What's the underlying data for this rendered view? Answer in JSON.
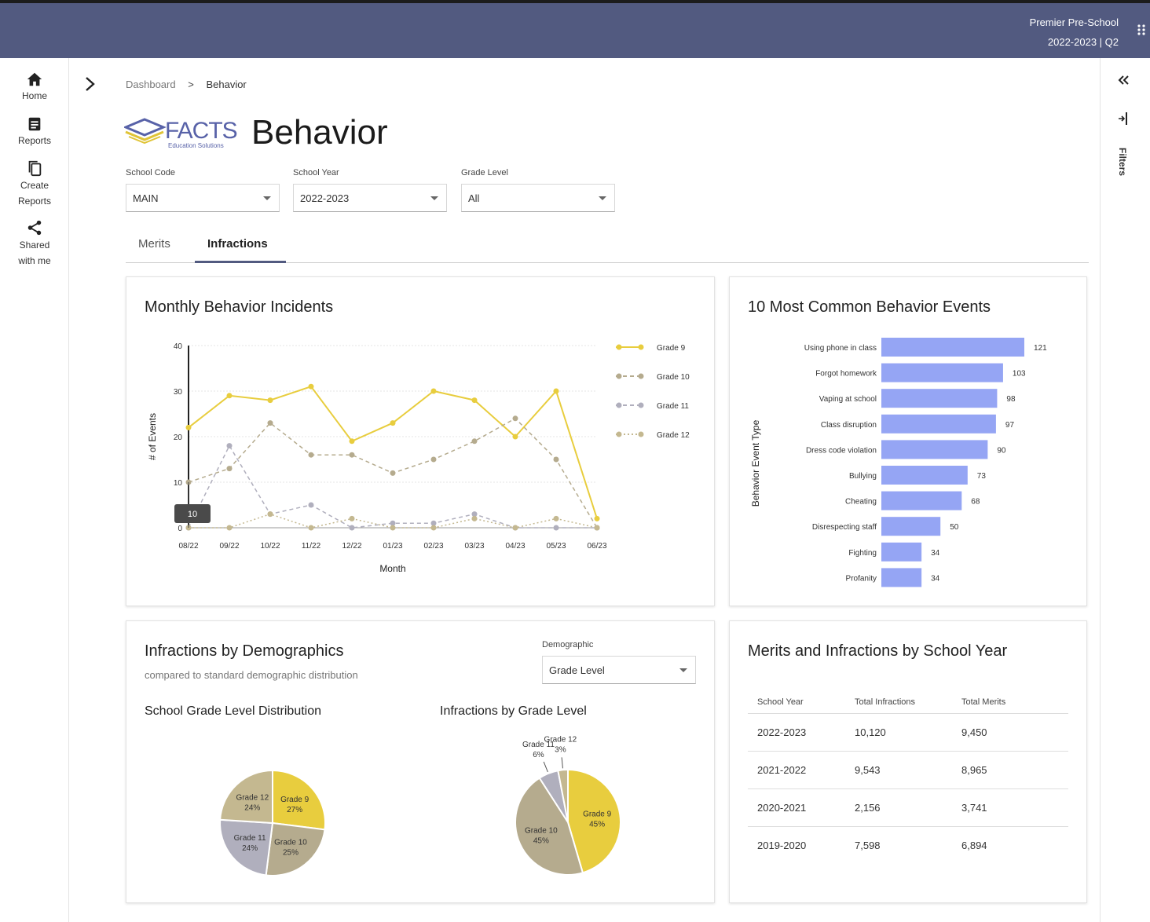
{
  "header": {
    "org_name": "Premier Pre-School",
    "term": "2022-2023 | Q2"
  },
  "nav": [
    {
      "icon": "home-icon",
      "label": "Home"
    },
    {
      "icon": "reports-icon",
      "label": "Reports"
    },
    {
      "icon": "copy-icon",
      "label": "Create Reports"
    },
    {
      "icon": "share-icon",
      "label": "Shared with me"
    }
  ],
  "right_rail": {
    "filters_label": "Filters"
  },
  "breadcrumb": {
    "parent": "Dashboard",
    "separator": ">",
    "current": "Behavior"
  },
  "logo": {
    "text": "FACTS",
    "tagline": "Education Solutions"
  },
  "page_title": "Behavior",
  "filters": {
    "school_code": {
      "label": "School Code",
      "value": "MAIN"
    },
    "school_year": {
      "label": "School Year",
      "value": "2022-2023"
    },
    "grade_level": {
      "label": "Grade Level",
      "value": "All"
    }
  },
  "tabs": [
    {
      "label": "Merits"
    },
    {
      "label": "Infractions"
    }
  ],
  "monthly": {
    "title": "Monthly Behavior Incidents"
  },
  "events": {
    "title": "10 Most Common Behavior Events"
  },
  "demographics": {
    "title": "Infractions by Demographics",
    "subtitle": "compared to standard demographic distribution",
    "select_label": "Demographic",
    "select_value": "Grade Level",
    "dist_title": "School Grade Level Distribution",
    "infr_title": "Infractions by Grade Level"
  },
  "merits_infractions": {
    "title": "Merits and Infractions by School Year",
    "headers": [
      "School Year",
      "Total Infractions",
      "Total Merits"
    ],
    "rows": [
      [
        "2022-2023",
        "10,120",
        "9,450"
      ],
      [
        "2021-2022",
        "9,543",
        "8,965"
      ],
      [
        "2020-2021",
        "2,156",
        "3,741"
      ],
      [
        "2019-2020",
        "7,598",
        "6,894"
      ]
    ]
  },
  "colors": {
    "header": "#525a80",
    "grade9": "#e8cd3e",
    "grade10": "#b5ab8e",
    "grade11": "#b0afbd",
    "grade12": "#c4b890",
    "bar": "#95a5f4"
  },
  "chart_data": [
    {
      "type": "line",
      "title": "Monthly Behavior Incidents",
      "xlabel": "Month",
      "ylabel": "# of Events",
      "x": [
        "08/22",
        "09/22",
        "10/22",
        "11/22",
        "12/22",
        "01/23",
        "02/23",
        "03/23",
        "04/23",
        "05/23",
        "06/23"
      ],
      "ylim": [
        0,
        40
      ],
      "yticks": [
        0,
        10,
        20,
        30,
        40
      ],
      "grid": true,
      "legend": "right",
      "series": [
        {
          "name": "Grade 9",
          "values": [
            22,
            29,
            28,
            31,
            19,
            23,
            30,
            28,
            20,
            30,
            2
          ]
        },
        {
          "name": "Grade 10",
          "values": [
            10,
            13,
            23,
            16,
            16,
            12,
            15,
            19,
            24,
            15,
            0
          ]
        },
        {
          "name": "Grade 11",
          "values": [
            0,
            18,
            3,
            5,
            0,
            1,
            1,
            3,
            0,
            0,
            0
          ]
        },
        {
          "name": "Grade 12",
          "values": [
            0,
            0,
            3,
            0,
            2,
            0,
            0,
            2,
            0,
            2,
            0
          ]
        }
      ],
      "annotation": {
        "label": "10"
      }
    },
    {
      "type": "bar",
      "orientation": "horizontal",
      "title": "10 Most Common Behavior Events",
      "ylabel": "Behavior Event Type",
      "categories": [
        "Using phone in class",
        "Forgot homework",
        "Vaping at school",
        "Class disruption",
        "Dress code violation",
        "Bullying",
        "Cheating",
        "Disrespecting staff",
        "Fighting",
        "Profanity"
      ],
      "values": [
        121,
        103,
        98,
        97,
        90,
        73,
        68,
        50,
        34,
        34
      ]
    },
    {
      "type": "pie",
      "title": "School Grade Level Distribution",
      "labels": [
        "Grade 9",
        "Grade 10",
        "Grade 11",
        "Grade 12"
      ],
      "values": [
        27,
        25,
        24,
        24
      ],
      "value_labels": [
        "27%",
        "25%",
        "24%",
        "24%"
      ]
    },
    {
      "type": "pie",
      "title": "Infractions by Grade Level",
      "labels": [
        "Grade 9",
        "Grade 10",
        "Grade 11",
        "Grade 12"
      ],
      "values": [
        45,
        45,
        6,
        3
      ],
      "value_labels": [
        "45%",
        "45%",
        "6%",
        "3%"
      ]
    }
  ]
}
